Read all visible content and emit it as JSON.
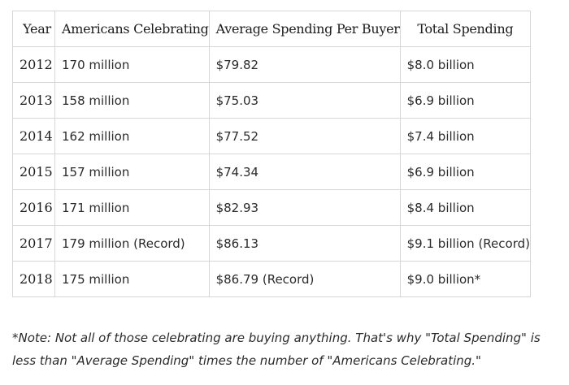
{
  "table": {
    "headers": [
      "Year",
      "Americans Celebrating",
      "Average Spending Per Buyer",
      "Total Spending"
    ],
    "rows": [
      [
        "2012",
        "170 million",
        "$79.82",
        "$8.0 billion"
      ],
      [
        "2013",
        "158 million",
        "$75.03",
        "$6.9 billion"
      ],
      [
        "2014",
        "162 million",
        "$77.52",
        "$7.4 billion"
      ],
      [
        "2015",
        "157 million",
        "$74.34",
        "$6.9 billion"
      ],
      [
        "2016",
        "171 million",
        "$82.93",
        "$8.4 billion"
      ],
      [
        "2017",
        "179 million (Record)",
        "$86.13",
        "$9.1 billion (Record)"
      ],
      [
        "2018",
        "175 million",
        "$86.79 (Record)",
        "$9.0 billion*"
      ]
    ]
  },
  "note": {
    "text": "*Note: Not all of those celebrating are buying anything. That's why \"Total Spending\" is less than \"Average Spending\" times the number of \"Americans Celebrating.\""
  }
}
